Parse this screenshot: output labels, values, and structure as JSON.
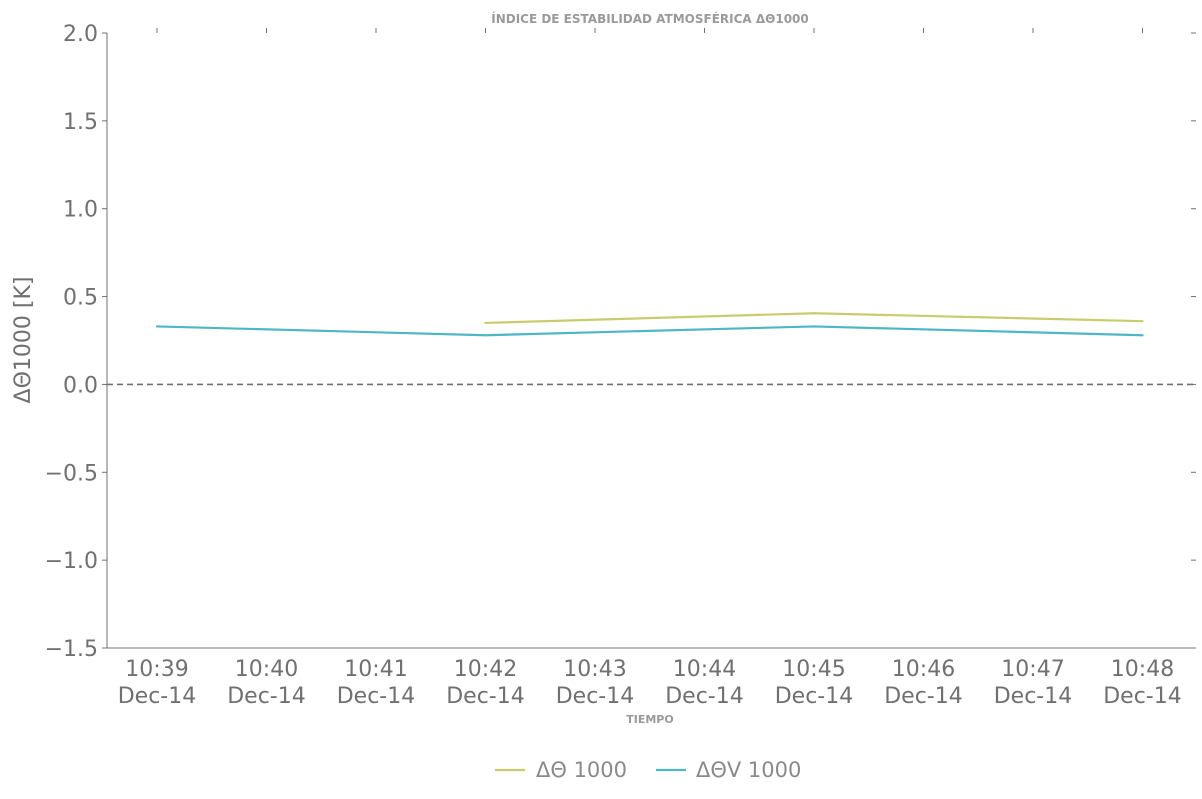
{
  "chart_data": {
    "type": "line",
    "title": "ÍNDICE DE ESTABILIDAD ATMOSFÉRICA ΔΘ1000",
    "xlabel": "TIEMPO",
    "ylabel": "ΔΘ1000 [K]",
    "ylim": [
      -1.5,
      2.0
    ],
    "yticks": [
      -1.5,
      -1.0,
      -0.5,
      0.0,
      0.5,
      1.0,
      1.5,
      2.0
    ],
    "ytick_labels": [
      "−1.5",
      "−1.0",
      "−0.5",
      "0.0",
      "0.5",
      "1.0",
      "1.5",
      "2.0"
    ],
    "x": [
      "10:39",
      "10:40",
      "10:41",
      "10:42",
      "10:43",
      "10:44",
      "10:45",
      "10:46",
      "10:47",
      "10:48"
    ],
    "xtick_labels": [
      [
        "10:39",
        "Dec-14"
      ],
      [
        "10:40",
        "Dec-14"
      ],
      [
        "10:41",
        "Dec-14"
      ],
      [
        "10:42",
        "Dec-14"
      ],
      [
        "10:43",
        "Dec-14"
      ],
      [
        "10:44",
        "Dec-14"
      ],
      [
        "10:45",
        "Dec-14"
      ],
      [
        "10:46",
        "Dec-14"
      ],
      [
        "10:47",
        "Dec-14"
      ],
      [
        "10:48",
        "Dec-14"
      ]
    ],
    "series": [
      {
        "name": "ΔΘ 1000",
        "color": "#c8cc6c",
        "points": [
          [
            "10:42",
            0.35
          ],
          [
            "10:45",
            0.405
          ],
          [
            "10:48",
            0.36
          ]
        ]
      },
      {
        "name": "ΔΘV 1000",
        "color": "#4fb6c6",
        "points": [
          [
            "10:39",
            0.33
          ],
          [
            "10:42",
            0.28
          ],
          [
            "10:45",
            0.33
          ],
          [
            "10:48",
            0.28
          ]
        ]
      }
    ],
    "reference_line": {
      "y": 0.0,
      "style": "dashed",
      "color": "#6f6f6f"
    },
    "grid": false,
    "legend": "bottom-center"
  }
}
